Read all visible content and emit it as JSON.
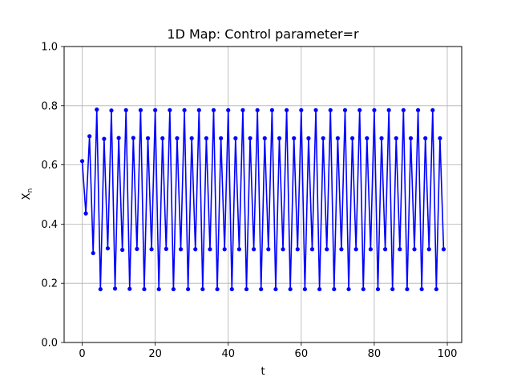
{
  "chart_data": {
    "type": "line",
    "title": "1D Map: Control parameter=r",
    "xlabel": "t",
    "ylabel": "X",
    "ylabel_subscript": "n",
    "xlim": [
      -4.95,
      103.95
    ],
    "ylim": [
      0.0,
      1.0
    ],
    "xticks": [
      0,
      20,
      40,
      60,
      80,
      100
    ],
    "yticks": [
      0.0,
      0.2,
      0.4,
      0.6,
      0.8,
      1.0
    ],
    "xtick_labels": [
      "0",
      "20",
      "40",
      "60",
      "80",
      "100"
    ],
    "ytick_labels": [
      "0.0",
      "0.2",
      "0.4",
      "0.6",
      "0.8",
      "1.0"
    ],
    "grid": true,
    "series": [
      {
        "color": "#0000ff",
        "marker": "circle",
        "x": [
          0,
          1,
          2,
          3,
          4,
          5,
          6,
          7,
          8,
          9,
          10,
          11,
          12,
          13,
          14,
          15,
          16,
          17,
          18,
          19,
          20,
          21,
          22,
          23,
          24,
          25,
          26,
          27,
          28,
          29,
          30,
          31,
          32,
          33,
          34,
          35,
          36,
          37,
          38,
          39,
          40,
          41,
          42,
          43,
          44,
          45,
          46,
          47,
          48,
          49,
          50,
          51,
          52,
          53,
          54,
          55,
          56,
          57,
          58,
          59,
          60,
          61,
          62,
          63,
          64,
          65,
          66,
          67,
          68,
          69,
          70,
          71,
          72,
          73,
          74,
          75,
          76,
          77,
          78,
          79,
          80,
          81,
          82,
          83,
          84,
          85,
          86,
          87,
          88,
          89,
          90,
          91,
          92,
          93,
          94,
          95,
          96,
          97,
          98,
          99
        ],
        "y": [
          0.613,
          0.436,
          0.697,
          0.302,
          0.787,
          0.18,
          0.688,
          0.318,
          0.784,
          0.182,
          0.691,
          0.313,
          0.785,
          0.181,
          0.691,
          0.316,
          0.785,
          0.18,
          0.69,
          0.315,
          0.785,
          0.18,
          0.69,
          0.316,
          0.785,
          0.18,
          0.69,
          0.315,
          0.785,
          0.18,
          0.69,
          0.315,
          0.785,
          0.18,
          0.69,
          0.315,
          0.785,
          0.18,
          0.69,
          0.315,
          0.785,
          0.18,
          0.69,
          0.315,
          0.785,
          0.18,
          0.69,
          0.315,
          0.785,
          0.18,
          0.69,
          0.315,
          0.785,
          0.18,
          0.69,
          0.315,
          0.785,
          0.18,
          0.69,
          0.315,
          0.785,
          0.18,
          0.69,
          0.315,
          0.785,
          0.18,
          0.69,
          0.315,
          0.785,
          0.18,
          0.69,
          0.315,
          0.785,
          0.18,
          0.69,
          0.315,
          0.785,
          0.18,
          0.69,
          0.315,
          0.785,
          0.18,
          0.69,
          0.315,
          0.785,
          0.18,
          0.69,
          0.315,
          0.785,
          0.18,
          0.69,
          0.315,
          0.785,
          0.18,
          0.69,
          0.315,
          0.785,
          0.18,
          0.69,
          0.315
        ]
      }
    ]
  }
}
